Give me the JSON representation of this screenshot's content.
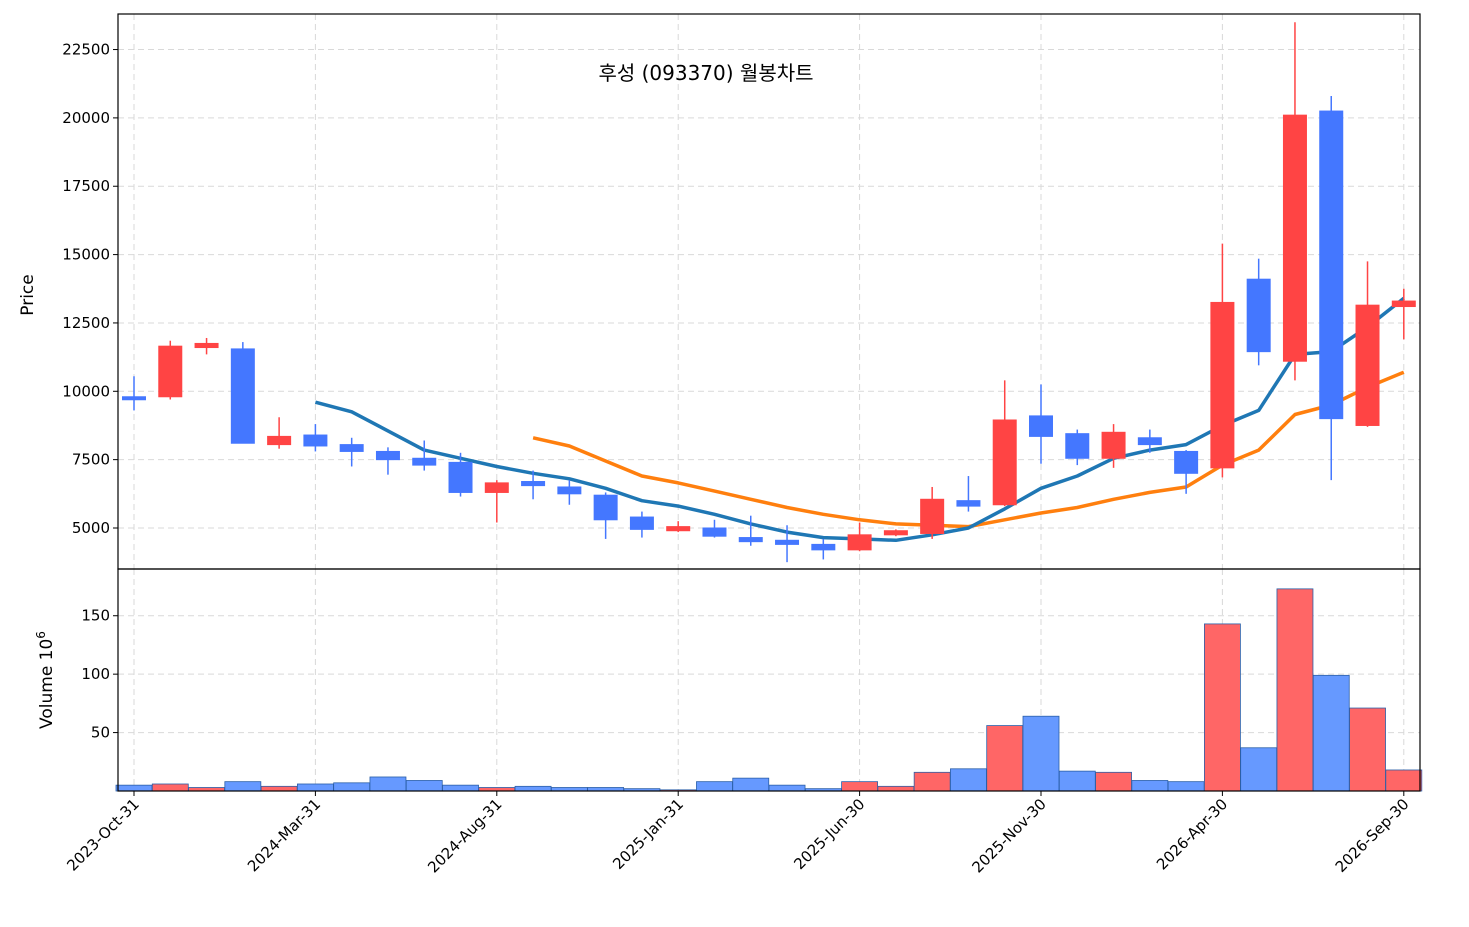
{
  "chart_data": {
    "type": "candlestick",
    "title": "후성 (093370) 월봉차트",
    "ylabel_price": "Price",
    "ylabel_volume_main": "Volume",
    "ylabel_volume_exp": "10",
    "ylabel_volume_sup": "6",
    "price_ylim": [
      3500,
      23800
    ],
    "volume_ylim": [
      0,
      190
    ],
    "price_yticks": [
      5000,
      7500,
      10000,
      12500,
      15000,
      17500,
      20000,
      22500
    ],
    "volume_yticks": [
      50,
      100,
      150
    ],
    "xtick_labels": [
      {
        "index": 0,
        "label": "2023-Oct-31"
      },
      {
        "index": 5,
        "label": "2024-Mar-31"
      },
      {
        "index": 10,
        "label": "2024-Aug-31"
      },
      {
        "index": 15,
        "label": "2025-Jan-31"
      },
      {
        "index": 20,
        "label": "2025-Jun-30"
      },
      {
        "index": 25,
        "label": "2025-Nov-30"
      },
      {
        "index": 30,
        "label": "2026-Apr-30"
      },
      {
        "index": 35,
        "label": "2026-Sep-30"
      }
    ],
    "colors": {
      "up": "#ff4444",
      "down": "#4477ff",
      "vol_up": "#ff6666",
      "vol_down": "#6699ff",
      "ma_short": "#1f77b4",
      "ma_long": "#ff7f0e"
    },
    "candles": [
      {
        "date": "2023-10-31",
        "open": 9800,
        "high": 10550,
        "low": 9300,
        "close": 9700,
        "volume": 5
      },
      {
        "date": "2023-11-30",
        "open": 9800,
        "high": 11850,
        "low": 9700,
        "close": 11650,
        "volume": 6
      },
      {
        "date": "2023-12-31",
        "open": 11600,
        "high": 11950,
        "low": 11350,
        "close": 11750,
        "volume": 3
      },
      {
        "date": "2024-01-31",
        "open": 11550,
        "high": 11800,
        "low": 8100,
        "close": 8100,
        "volume": 8
      },
      {
        "date": "2024-02-29",
        "open": 8050,
        "high": 9050,
        "low": 7900,
        "close": 8350,
        "volume": 4
      },
      {
        "date": "2024-03-31",
        "open": 8400,
        "high": 8800,
        "low": 7800,
        "close": 8000,
        "volume": 6
      },
      {
        "date": "2024-04-30",
        "open": 8050,
        "high": 8300,
        "low": 7250,
        "close": 7800,
        "volume": 7
      },
      {
        "date": "2024-05-31",
        "open": 7800,
        "high": 7950,
        "low": 6950,
        "close": 7500,
        "volume": 12
      },
      {
        "date": "2024-06-30",
        "open": 7550,
        "high": 8200,
        "low": 7100,
        "close": 7300,
        "volume": 9
      },
      {
        "date": "2024-07-31",
        "open": 7400,
        "high": 7750,
        "low": 6150,
        "close": 6300,
        "volume": 5
      },
      {
        "date": "2024-08-31",
        "open": 6300,
        "high": 6750,
        "low": 5200,
        "close": 6650,
        "volume": 3
      },
      {
        "date": "2024-09-30",
        "open": 6700,
        "high": 7100,
        "low": 6050,
        "close": 6550,
        "volume": 4
      },
      {
        "date": "2024-10-31",
        "open": 6500,
        "high": 6750,
        "low": 5850,
        "close": 6250,
        "volume": 3
      },
      {
        "date": "2024-11-30",
        "open": 6200,
        "high": 6300,
        "low": 4600,
        "close": 5300,
        "volume": 3
      },
      {
        "date": "2024-12-31",
        "open": 5400,
        "high": 5600,
        "low": 4650,
        "close": 4950,
        "volume": 2
      },
      {
        "date": "2025-01-31",
        "open": 4900,
        "high": 5250,
        "low": 4850,
        "close": 5050,
        "volume": 1
      },
      {
        "date": "2025-02-28",
        "open": 5000,
        "high": 5300,
        "low": 4650,
        "close": 4700,
        "volume": 8
      },
      {
        "date": "2025-03-31",
        "open": 4650,
        "high": 5450,
        "low": 4350,
        "close": 4500,
        "volume": 11
      },
      {
        "date": "2025-04-30",
        "open": 4550,
        "high": 5100,
        "low": 3750,
        "close": 4400,
        "volume": 5
      },
      {
        "date": "2025-05-31",
        "open": 4400,
        "high": 4600,
        "low": 3850,
        "close": 4200,
        "volume": 2
      },
      {
        "date": "2025-06-30",
        "open": 4200,
        "high": 5200,
        "low": 4150,
        "close": 4750,
        "volume": 8
      },
      {
        "date": "2025-07-31",
        "open": 4750,
        "high": 4950,
        "low": 4700,
        "close": 4900,
        "volume": 4
      },
      {
        "date": "2025-08-31",
        "open": 4800,
        "high": 6500,
        "low": 4600,
        "close": 6050,
        "volume": 16
      },
      {
        "date": "2025-09-30",
        "open": 6000,
        "high": 6900,
        "low": 5600,
        "close": 5800,
        "volume": 19
      },
      {
        "date": "2025-10-31",
        "open": 5850,
        "high": 10400,
        "low": 5800,
        "close": 8950,
        "volume": 56
      },
      {
        "date": "2025-11-30",
        "open": 9100,
        "high": 10250,
        "low": 7350,
        "close": 8350,
        "volume": 64
      },
      {
        "date": "2025-12-31",
        "open": 8450,
        "high": 8600,
        "low": 7300,
        "close": 7550,
        "volume": 17
      },
      {
        "date": "2026-01-31",
        "open": 7550,
        "high": 8800,
        "low": 7200,
        "close": 8500,
        "volume": 16
      },
      {
        "date": "2026-02-28",
        "open": 8300,
        "high": 8600,
        "low": 7750,
        "close": 8050,
        "volume": 9
      },
      {
        "date": "2026-03-31",
        "open": 7800,
        "high": 7850,
        "low": 6250,
        "close": 7000,
        "volume": 8
      },
      {
        "date": "2026-04-30",
        "open": 7200,
        "high": 15400,
        "low": 6850,
        "close": 13250,
        "volume": 143
      },
      {
        "date": "2026-05-31",
        "open": 14100,
        "high": 14850,
        "low": 10950,
        "close": 11450,
        "volume": 37
      },
      {
        "date": "2026-06-30",
        "open": 11100,
        "high": 23500,
        "low": 10400,
        "close": 20100,
        "volume": 173
      },
      {
        "date": "2026-07-31",
        "open": 20250,
        "high": 20800,
        "low": 6750,
        "close": 9000,
        "volume": 99
      },
      {
        "date": "2026-08-31",
        "open": 8750,
        "high": 14750,
        "low": 8700,
        "close": 13150,
        "volume": 71
      },
      {
        "date": "2026-09-30",
        "open": 13100,
        "high": 13750,
        "low": 11900,
        "close": 13300,
        "volume": 18
      }
    ],
    "ma_short": {
      "start_index": 5,
      "values": [
        9600,
        9250,
        8550,
        7850,
        7550,
        7250,
        7000,
        6800,
        6450,
        6000,
        5800,
        5500,
        5150,
        4850,
        4650,
        4600,
        4550,
        4750,
        5000,
        5700,
        6450,
        6900,
        7550,
        7850,
        8050,
        8750,
        9300,
        11350,
        11450,
        12350,
        13400
      ]
    },
    "ma_long": {
      "start_index": 11,
      "values": [
        8300,
        8000,
        7450,
        6900,
        6650,
        6350,
        6050,
        5750,
        5500,
        5300,
        5150,
        5100,
        5050,
        5300,
        5550,
        5750,
        6050,
        6300,
        6500,
        7300,
        7850,
        9150,
        9500,
        10150,
        10700
      ]
    }
  }
}
